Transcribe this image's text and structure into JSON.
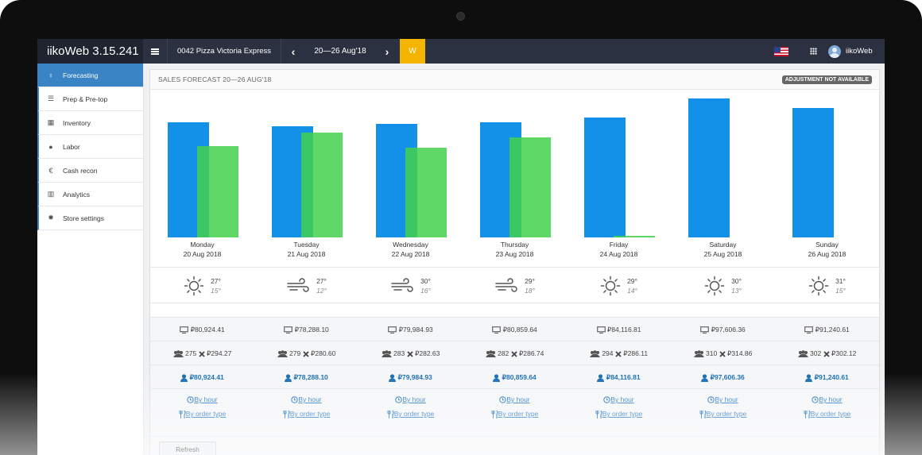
{
  "app": {
    "title": "iikoWeb 3.15.241"
  },
  "topbar": {
    "store": "0042 Pizza Victoria Express",
    "date_range": "20—26 Aug'18",
    "period_button": "W",
    "user": "iikoWeb",
    "prev_icon": "chevron-left-icon",
    "next_icon": "chevron-right-icon"
  },
  "sidebar": {
    "items": [
      {
        "label": "Forecasting",
        "icon": "lightbulb-icon",
        "active": true
      },
      {
        "label": "Prep & Pre-top",
        "icon": "list-icon"
      },
      {
        "label": "Inventory",
        "icon": "calculator-icon"
      },
      {
        "label": "Labor",
        "icon": "user-icon"
      },
      {
        "label": "Cash recon",
        "icon": "euro-icon"
      },
      {
        "label": "Analytics",
        "icon": "bar-chart-icon"
      },
      {
        "label": "Store settings",
        "icon": "gear-icon"
      }
    ]
  },
  "panel": {
    "title": "SALES FORECAST 20—26 AUG'18",
    "badge": "ADJUSTMENT NOT AVAILABLE",
    "refresh": "Refresh"
  },
  "colors": {
    "forecast": "#1391e9",
    "actual": "#43d14c",
    "accent": "#f5b400"
  },
  "chart_data": {
    "type": "bar",
    "categories": [
      "Monday",
      "Tuesday",
      "Wednesday",
      "Thursday",
      "Friday",
      "Saturday",
      "Sunday"
    ],
    "dates": [
      "20 Aug 2018",
      "21 Aug 2018",
      "22 Aug 2018",
      "23 Aug 2018",
      "24 Aug 2018",
      "25 Aug 2018",
      "26 Aug 2018"
    ],
    "series": [
      {
        "values": [
          80924.41,
          78288.1,
          79984.93,
          80859.64,
          84116.81,
          97606.36,
          91240.61
        ]
      },
      {
        "values": [
          64500,
          73700,
          63000,
          70200,
          900,
          null,
          null
        ]
      }
    ],
    "ylim": [
      0,
      100000
    ]
  },
  "days": [
    {
      "weather": "sun-icon",
      "tmax": "27°",
      "tmin": "15°",
      "sales": "₽80,924.41",
      "guests": "275",
      "avg": "₽294.27",
      "adjusted": "₽80,924.41"
    },
    {
      "weather": "wind-icon",
      "tmax": "27°",
      "tmin": "12°",
      "sales": "₽78,288.10",
      "guests": "279",
      "avg": "₽280.60",
      "adjusted": "₽78,288.10"
    },
    {
      "weather": "wind-icon",
      "tmax": "30°",
      "tmin": "16°",
      "sales": "₽79,984.93",
      "guests": "283",
      "avg": "₽282.63",
      "adjusted": "₽79,984.93"
    },
    {
      "weather": "wind-icon",
      "tmax": "29°",
      "tmin": "18°",
      "sales": "₽80,859.64",
      "guests": "282",
      "avg": "₽286.74",
      "adjusted": "₽80,859.64"
    },
    {
      "weather": "sun-icon",
      "tmax": "29°",
      "tmin": "14°",
      "sales": "₽84,116.81",
      "guests": "294",
      "avg": "₽286.11",
      "adjusted": "₽84,116.81"
    },
    {
      "weather": "sun-icon",
      "tmax": "30°",
      "tmin": "13°",
      "sales": "₽97,606.36",
      "guests": "310",
      "avg": "₽314.86",
      "adjusted": "₽97,606.36"
    },
    {
      "weather": "sun-icon",
      "tmax": "31°",
      "tmin": "15°",
      "sales": "₽91,240.61",
      "guests": "302",
      "avg": "₽302.12",
      "adjusted": "₽91,240.61"
    }
  ],
  "links": {
    "by_hour": "By hour",
    "by_order_type": "By order type"
  }
}
